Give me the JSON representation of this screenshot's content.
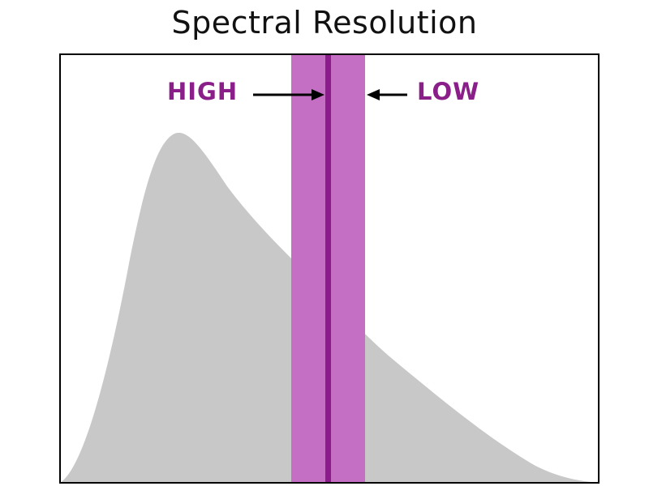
{
  "title": "Spectral Resolution",
  "labels": {
    "high": "HIGH",
    "low": "LOW"
  },
  "colors": {
    "curve_fill": "#c8c8c8",
    "band_wide": "#c46ec4",
    "band_narrow": "#8c1c8c",
    "label": "#8a1f8a",
    "arrow": "#000000",
    "frame": "#000000"
  }
}
